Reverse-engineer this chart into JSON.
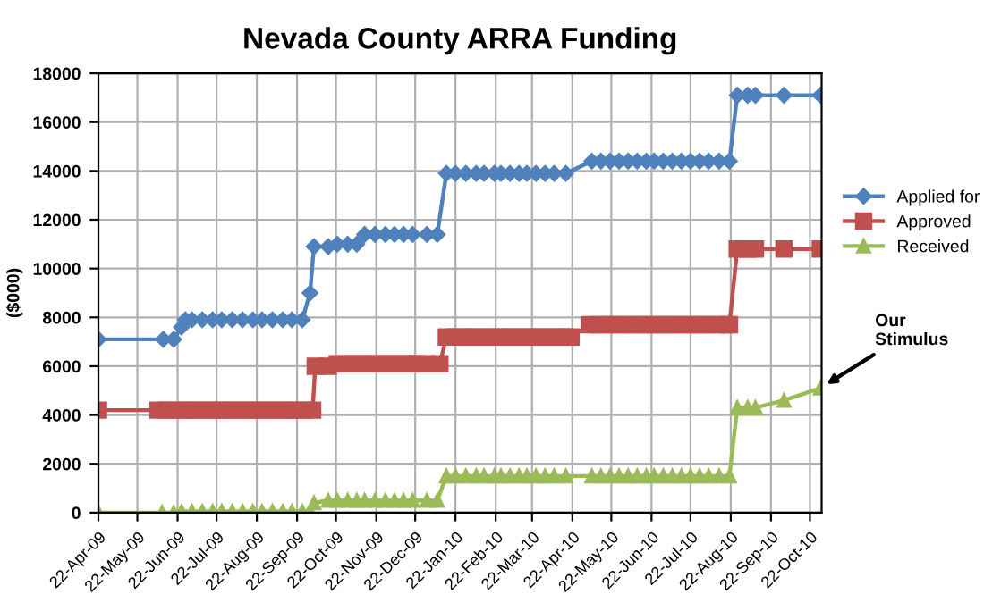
{
  "chart_data": {
    "type": "line",
    "title": "Nevada County ARRA Funding",
    "ylabel": "($000)",
    "ylim": [
      0,
      18000
    ],
    "yticks": [
      0,
      2000,
      4000,
      6000,
      8000,
      10000,
      12000,
      14000,
      16000,
      18000
    ],
    "xlim": [
      "2009-04-22",
      "2010-10-31"
    ],
    "xticks": [
      {
        "value": "2009-04-22",
        "label": "22-Apr-09"
      },
      {
        "value": "2009-05-22",
        "label": "22-May-09"
      },
      {
        "value": "2009-06-22",
        "label": "22-Jun-09"
      },
      {
        "value": "2009-07-22",
        "label": "22-Jul-09"
      },
      {
        "value": "2009-08-22",
        "label": "22-Aug-09"
      },
      {
        "value": "2009-09-22",
        "label": "22-Sep-09"
      },
      {
        "value": "2009-10-22",
        "label": "22-Oct-09"
      },
      {
        "value": "2009-11-22",
        "label": "22-Nov-09"
      },
      {
        "value": "2009-12-22",
        "label": "22-Dec-09"
      },
      {
        "value": "2010-01-22",
        "label": "22-Jan-10"
      },
      {
        "value": "2010-02-22",
        "label": "22-Feb-10"
      },
      {
        "value": "2010-03-22",
        "label": "22-Mar-10"
      },
      {
        "value": "2010-04-22",
        "label": "22-Apr-10"
      },
      {
        "value": "2010-05-22",
        "label": "22-May-10"
      },
      {
        "value": "2010-06-22",
        "label": "22-Jun-10"
      },
      {
        "value": "2010-07-22",
        "label": "22-Jul-10"
      },
      {
        "value": "2010-08-22",
        "label": "22-Aug-10"
      },
      {
        "value": "2010-09-22",
        "label": "22-Sep-10"
      },
      {
        "value": "2010-10-22",
        "label": "22-Oct-10"
      }
    ],
    "grid": true,
    "legend": "right",
    "line_style": "solid",
    "series": [
      {
        "name": "Applied for",
        "color": "#4f81bd",
        "marker": "diamond",
        "x": [
          "2009-04-22",
          "2009-06-11",
          "2009-06-19",
          "2009-06-25",
          "2009-06-28",
          "2009-07-03",
          "2009-07-11",
          "2009-07-19",
          "2009-07-26",
          "2009-08-03",
          "2009-08-11",
          "2009-08-19",
          "2009-08-26",
          "2009-09-03",
          "2009-09-11",
          "2009-09-18",
          "2009-09-26",
          "2009-10-02",
          "2009-10-05",
          "2009-10-16",
          "2009-10-23",
          "2009-10-31",
          "2009-11-07",
          "2009-11-13",
          "2009-11-21",
          "2009-11-29",
          "2009-12-06",
          "2009-12-13",
          "2009-12-20",
          "2009-12-31",
          "2010-01-08",
          "2010-01-15",
          "2010-01-22",
          "2010-01-30",
          "2010-02-07",
          "2010-02-13",
          "2010-02-21",
          "2010-02-26",
          "2010-03-05",
          "2010-03-12",
          "2010-03-18",
          "2010-03-25",
          "2010-04-01",
          "2010-04-08",
          "2010-04-17",
          "2010-05-07",
          "2010-05-14",
          "2010-05-21",
          "2010-05-28",
          "2010-06-04",
          "2010-06-11",
          "2010-06-18",
          "2010-06-24",
          "2010-07-01",
          "2010-07-08",
          "2010-07-15",
          "2010-07-22",
          "2010-07-29",
          "2010-08-05",
          "2010-08-13",
          "2010-08-21",
          "2010-08-27",
          "2010-09-04",
          "2010-09-10",
          "2010-10-02",
          "2010-10-30"
        ],
        "values": [
          7100,
          7100,
          7100,
          7600,
          7900,
          7900,
          7900,
          7900,
          7900,
          7900,
          7900,
          7900,
          7900,
          7900,
          7900,
          7900,
          7900,
          9000,
          10900,
          10900,
          11000,
          11000,
          11000,
          11400,
          11400,
          11400,
          11400,
          11400,
          11400,
          11400,
          11400,
          13900,
          13900,
          13900,
          13900,
          13900,
          13900,
          13900,
          13900,
          13900,
          13900,
          13900,
          13900,
          13900,
          13900,
          14400,
          14400,
          14400,
          14400,
          14400,
          14400,
          14400,
          14400,
          14400,
          14400,
          14400,
          14400,
          14400,
          14400,
          14400,
          14400,
          17100,
          17100,
          17100,
          17100,
          17100
        ]
      },
      {
        "name": "Approved",
        "color": "#c0504d",
        "marker": "square",
        "x": [
          "2009-04-22",
          "2009-06-07",
          "2009-06-14",
          "2009-06-21",
          "2009-06-28",
          "2009-07-05",
          "2009-07-12",
          "2009-07-19",
          "2009-07-26",
          "2009-08-02",
          "2009-08-09",
          "2009-08-16",
          "2009-08-23",
          "2009-08-30",
          "2009-09-06",
          "2009-09-13",
          "2009-09-20",
          "2009-09-27",
          "2009-10-04",
          "2009-10-06",
          "2009-10-16",
          "2009-10-23",
          "2009-10-30",
          "2009-11-06",
          "2009-11-13",
          "2009-11-20",
          "2009-11-27",
          "2009-12-04",
          "2009-12-11",
          "2009-12-18",
          "2009-12-23",
          "2009-12-31",
          "2010-01-10",
          "2010-01-15",
          "2010-01-22",
          "2010-01-29",
          "2010-02-05",
          "2010-02-12",
          "2010-02-19",
          "2010-02-26",
          "2010-03-05",
          "2010-03-12",
          "2010-03-19",
          "2010-03-26",
          "2010-04-02",
          "2010-04-09",
          "2010-04-16",
          "2010-04-21",
          "2010-05-05",
          "2010-05-12",
          "2010-05-19",
          "2010-05-26",
          "2010-06-02",
          "2010-06-09",
          "2010-06-16",
          "2010-06-23",
          "2010-06-30",
          "2010-07-07",
          "2010-07-14",
          "2010-07-21",
          "2010-07-28",
          "2010-08-04",
          "2010-08-11",
          "2010-08-18",
          "2010-08-21",
          "2010-08-27",
          "2010-09-04",
          "2010-09-10",
          "2010-10-02",
          "2010-10-30"
        ],
        "values": [
          4200,
          4200,
          4200,
          4200,
          4200,
          4200,
          4200,
          4200,
          4200,
          4200,
          4200,
          4200,
          4200,
          4200,
          4200,
          4200,
          4200,
          4200,
          4200,
          6000,
          6000,
          6100,
          6100,
          6100,
          6100,
          6100,
          6100,
          6100,
          6100,
          6100,
          6100,
          6100,
          6100,
          7200,
          7200,
          7200,
          7200,
          7200,
          7200,
          7200,
          7200,
          7200,
          7200,
          7200,
          7200,
          7200,
          7200,
          7200,
          7700,
          7700,
          7700,
          7700,
          7700,
          7700,
          7700,
          7700,
          7700,
          7700,
          7700,
          7700,
          7700,
          7700,
          7700,
          7700,
          7700,
          10800,
          10800,
          10800,
          10800,
          10800
        ]
      },
      {
        "name": "Received",
        "color": "#9bbb59",
        "marker": "triangle",
        "x": [
          "2009-04-22",
          "2009-06-10",
          "2009-06-19",
          "2009-06-25",
          "2009-07-03",
          "2009-07-11",
          "2009-07-19",
          "2009-07-26",
          "2009-08-03",
          "2009-08-11",
          "2009-08-19",
          "2009-08-26",
          "2009-09-03",
          "2009-09-11",
          "2009-09-18",
          "2009-09-26",
          "2009-10-02",
          "2009-10-05",
          "2009-10-16",
          "2009-10-23",
          "2009-10-31",
          "2009-11-07",
          "2009-11-13",
          "2009-11-21",
          "2009-11-29",
          "2009-12-06",
          "2009-12-13",
          "2009-12-20",
          "2009-12-31",
          "2010-01-08",
          "2010-01-15",
          "2010-01-22",
          "2010-01-30",
          "2010-02-07",
          "2010-02-13",
          "2010-02-21",
          "2010-02-26",
          "2010-03-05",
          "2010-03-12",
          "2010-03-18",
          "2010-03-25",
          "2010-04-01",
          "2010-04-08",
          "2010-04-17",
          "2010-05-07",
          "2010-05-14",
          "2010-05-21",
          "2010-05-28",
          "2010-06-04",
          "2010-06-11",
          "2010-06-18",
          "2010-06-24",
          "2010-07-01",
          "2010-07-08",
          "2010-07-15",
          "2010-07-22",
          "2010-07-29",
          "2010-08-05",
          "2010-08-13",
          "2010-08-21",
          "2010-08-27",
          "2010-09-04",
          "2010-09-10",
          "2010-10-02",
          "2010-10-30"
        ],
        "values": [
          0,
          0,
          0,
          50,
          50,
          50,
          50,
          50,
          50,
          50,
          50,
          50,
          50,
          50,
          50,
          50,
          50,
          400,
          500,
          500,
          500,
          500,
          500,
          500,
          500,
          500,
          500,
          500,
          500,
          500,
          1500,
          1500,
          1500,
          1500,
          1500,
          1500,
          1500,
          1500,
          1500,
          1500,
          1500,
          1500,
          1500,
          1500,
          1500,
          1500,
          1500,
          1500,
          1500,
          1500,
          1500,
          1500,
          1500,
          1500,
          1500,
          1500,
          1500,
          1500,
          1500,
          1500,
          4300,
          4300,
          4300,
          4600,
          5100
        ]
      }
    ],
    "annotations": [
      {
        "text": "Our\nStimulus",
        "x": "2010-10-30",
        "y": 5100
      }
    ]
  }
}
